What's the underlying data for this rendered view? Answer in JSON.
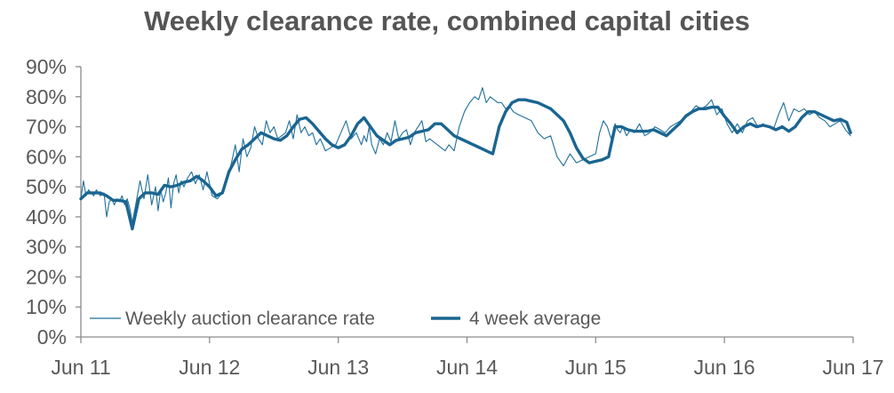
{
  "chart_data": {
    "type": "line",
    "title": "Weekly clearance rate, combined capital cities",
    "xlabel": "",
    "ylabel": "",
    "x_ticks": [
      "Jun 11",
      "Jun 12",
      "Jun 13",
      "Jun 14",
      "Jun 15",
      "Jun 16",
      "Jun 17"
    ],
    "y_ticks": [
      "0%",
      "10%",
      "20%",
      "30%",
      "40%",
      "50%",
      "60%",
      "70%",
      "80%",
      "90%"
    ],
    "xlim": [
      2011.5,
      2017.5
    ],
    "ylim": [
      0,
      90
    ],
    "grid": false,
    "legend_position": "bottom-left",
    "series": [
      {
        "name": "Weekly auction clearance rate",
        "color": "#1f6f9a",
        "style": "thin",
        "x": [
          2011.5,
          2011.52,
          2011.54,
          2011.56,
          2011.58,
          2011.6,
          2011.62,
          2011.65,
          2011.68,
          2011.7,
          2011.72,
          2011.74,
          2011.76,
          2011.78,
          2011.8,
          2011.82,
          2011.84,
          2011.86,
          2011.88,
          2011.9,
          2011.93,
          2011.96,
          2011.99,
          2012.02,
          2012.05,
          2012.08,
          2012.1,
          2012.12,
          2012.14,
          2012.16,
          2012.18,
          2012.2,
          2012.22,
          2012.24,
          2012.26,
          2012.28,
          2012.3,
          2012.33,
          2012.36,
          2012.39,
          2012.42,
          2012.45,
          2012.48,
          2012.52,
          2012.56,
          2012.6,
          2012.64,
          2012.67,
          2012.7,
          2012.73,
          2012.76,
          2012.79,
          2012.82,
          2012.85,
          2012.88,
          2012.91,
          2012.94,
          2012.97,
          2013.0,
          2013.03,
          2013.06,
          2013.09,
          2013.12,
          2013.15,
          2013.18,
          2013.21,
          2013.24,
          2013.27,
          2013.3,
          2013.33,
          2013.36,
          2013.4,
          2013.44,
          2013.48,
          2013.52,
          2013.56,
          2013.6,
          2013.64,
          2013.68,
          2013.7,
          2013.72,
          2013.74,
          2013.76,
          2013.79,
          2013.82,
          2013.85,
          2013.88,
          2013.91,
          2013.94,
          2013.97,
          2014.0,
          2014.03,
          2014.06,
          2014.09,
          2014.12,
          2014.15,
          2014.18,
          2014.21,
          2014.24,
          2014.27,
          2014.3,
          2014.33,
          2014.36,
          2014.4,
          2014.44,
          2014.48,
          2014.52,
          2014.56,
          2014.59,
          2014.62,
          2014.65,
          2014.68,
          2014.71,
          2014.74,
          2014.77,
          2014.8,
          2014.83,
          2014.86,
          2014.9,
          2014.95,
          2015.0,
          2015.05,
          2015.1,
          2015.15,
          2015.2,
          2015.25,
          2015.3,
          2015.35,
          2015.4,
          2015.45,
          2015.5,
          2015.53,
          2015.56,
          2015.59,
          2015.62,
          2015.65,
          2015.67,
          2015.69,
          2015.71,
          2015.74,
          2015.77,
          2015.8,
          2015.84,
          2015.88,
          2015.92,
          2015.96,
          2016.0,
          2016.04,
          2016.08,
          2016.12,
          2016.16,
          2016.2,
          2016.24,
          2016.28,
          2016.32,
          2016.36,
          2016.4,
          2016.44,
          2016.48,
          2016.52,
          2016.56,
          2016.6,
          2016.64,
          2016.68,
          2016.72,
          2016.76,
          2016.8,
          2016.84,
          2016.88,
          2016.92,
          2016.96,
          2017.0,
          2017.04,
          2017.08,
          2017.12,
          2017.16,
          2017.2,
          2017.24,
          2017.28,
          2017.32,
          2017.36,
          2017.4,
          2017.44,
          2017.48
        ],
        "y": [
          46,
          52,
          47,
          49,
          48,
          47,
          49,
          47,
          48,
          40,
          45,
          46,
          44,
          46,
          45,
          47,
          44,
          46,
          43,
          38,
          45,
          52,
          46,
          54,
          44,
          50,
          42,
          49,
          45,
          48,
          53,
          43,
          51,
          54,
          48,
          52,
          50,
          53,
          55,
          51,
          54,
          49,
          55,
          47,
          46,
          48,
          53,
          58,
          64,
          55,
          66,
          60,
          63,
          70,
          66,
          64,
          72,
          68,
          70,
          66,
          67,
          68,
          72,
          66,
          74,
          68,
          70,
          67,
          68,
          64,
          66,
          62,
          63,
          64,
          68,
          72,
          66,
          68,
          64,
          67,
          65,
          70,
          64,
          61,
          66,
          64,
          68,
          65,
          72,
          66,
          68,
          69,
          64,
          68,
          70,
          72,
          65,
          66,
          65,
          64,
          63,
          62,
          64,
          62,
          70,
          75,
          78,
          80,
          79,
          83,
          78,
          80,
          79,
          78,
          78,
          76,
          77,
          75,
          74,
          73,
          72,
          68,
          66,
          67,
          60,
          57,
          61,
          58,
          59,
          60,
          61,
          68,
          72,
          70,
          66,
          71,
          69,
          68,
          70,
          67,
          69,
          68,
          71,
          67,
          68,
          70,
          69,
          68,
          70,
          71,
          72,
          74,
          75,
          77,
          76,
          77,
          79,
          74,
          76,
          71,
          68,
          71,
          68,
          72,
          73,
          70,
          71,
          70,
          69,
          74,
          78,
          72,
          76,
          75,
          76,
          74,
          75,
          73,
          72,
          70,
          71,
          72,
          69,
          67
        ]
      },
      {
        "name": "4 week average",
        "color": "#1a6591",
        "style": "thick",
        "x": [
          2011.5,
          2011.55,
          2011.6,
          2011.65,
          2011.7,
          2011.75,
          2011.8,
          2011.85,
          2011.9,
          2011.95,
          2012.0,
          2012.05,
          2012.1,
          2012.15,
          2012.2,
          2012.25,
          2012.3,
          2012.35,
          2012.4,
          2012.45,
          2012.5,
          2012.55,
          2012.6,
          2012.65,
          2012.7,
          2012.75,
          2012.8,
          2012.85,
          2012.9,
          2012.95,
          2013.0,
          2013.05,
          2013.1,
          2013.15,
          2013.2,
          2013.25,
          2013.3,
          2013.35,
          2013.4,
          2013.45,
          2013.5,
          2013.55,
          2013.6,
          2013.65,
          2013.7,
          2013.75,
          2013.8,
          2013.85,
          2013.9,
          2013.95,
          2014.0,
          2014.05,
          2014.1,
          2014.15,
          2014.2,
          2014.25,
          2014.3,
          2014.35,
          2014.4,
          2014.45,
          2014.5,
          2014.55,
          2014.6,
          2014.65,
          2014.7,
          2014.75,
          2014.8,
          2014.85,
          2014.9,
          2014.95,
          2015.0,
          2015.05,
          2015.1,
          2015.15,
          2015.2,
          2015.25,
          2015.3,
          2015.35,
          2015.4,
          2015.45,
          2015.5,
          2015.55,
          2015.6,
          2015.65,
          2015.7,
          2015.75,
          2015.8,
          2015.85,
          2015.9,
          2015.95,
          2016.0,
          2016.05,
          2016.1,
          2016.15,
          2016.2,
          2016.25,
          2016.3,
          2016.35,
          2016.4,
          2016.45,
          2016.5,
          2016.55,
          2016.6,
          2016.65,
          2016.7,
          2016.75,
          2016.8,
          2016.85,
          2016.9,
          2016.95,
          2017.0,
          2017.05,
          2017.1,
          2017.15,
          2017.2,
          2017.25,
          2017.3,
          2017.35,
          2017.4,
          2017.45,
          2017.48
        ],
        "y": [
          46.0,
          48.0,
          48.0,
          48.0,
          47.0,
          45.5,
          45.5,
          45.0,
          36.0,
          46.0,
          48.0,
          48.0,
          47.5,
          50.5,
          50.0,
          50.5,
          51.5,
          52.0,
          53.5,
          52.0,
          50.0,
          47.0,
          48.0,
          55.0,
          59.0,
          62.5,
          64.0,
          66.0,
          68.0,
          67.0,
          66.0,
          65.5,
          67.0,
          70.0,
          72.5,
          73.0,
          71.0,
          68.5,
          66.0,
          64.0,
          63.0,
          64.0,
          67.0,
          71.0,
          73.0,
          70.0,
          67.0,
          65.5,
          64.0,
          65.5,
          66.0,
          66.5,
          68.0,
          68.5,
          69.0,
          71.0,
          71.0,
          69.0,
          67.0,
          66.0,
          65.0,
          64.0,
          63.0,
          62.0,
          61.0,
          70.0,
          75.0,
          78.0,
          79.0,
          79.0,
          78.5,
          78.0,
          77.0,
          76.0,
          74.0,
          72.0,
          68.0,
          63.0,
          59.5,
          58.0,
          58.5,
          59.0,
          60.0,
          70.0,
          70.0,
          69.0,
          68.5,
          68.5,
          68.5,
          69.0,
          68.0,
          67.0,
          69.0,
          71.0,
          73.5,
          75.0,
          76.0,
          76.0,
          76.5,
          76.5,
          73.5,
          71.0,
          68.0,
          70.0,
          71.0,
          70.0,
          70.5,
          70.0,
          69.0,
          70.0,
          68.5,
          70.0,
          73.0,
          75.0,
          75.0,
          74.0,
          73.0,
          72.0,
          72.5,
          71.5,
          68.0
        ]
      }
    ]
  }
}
